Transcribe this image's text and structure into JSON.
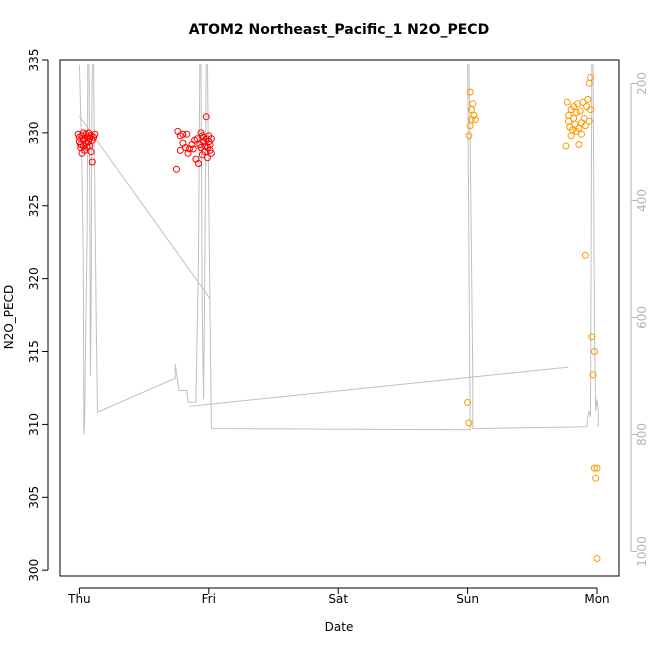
{
  "chart_data": {
    "type": "scatter",
    "title": "ATOM2 Northeast_Pacific_1 N2O_PECD",
    "xlabel": "Date",
    "ylabel": "N2O_PECD",
    "x_ticks": [
      "Thu",
      "Fri",
      "Sat",
      "Sun",
      "Mon"
    ],
    "x_unit": "days since first tick (Thu=0)",
    "xlim": [
      -0.15,
      4.17
    ],
    "ylim": [
      299.6,
      335.0
    ],
    "y_ticks": [
      300,
      305,
      310,
      315,
      320,
      325,
      330,
      335
    ],
    "y2_ticks": [
      200,
      400,
      600,
      800,
      1000
    ],
    "y2lim": [
      1042,
      160
    ],
    "grid": false,
    "colors": {
      "series1": "#ff0000",
      "series2": "#ff9900",
      "profile": "#c0c0c0",
      "axis": "#000000",
      "axis2": "#b3b3b3"
    },
    "series": [
      {
        "color": "#ff0000",
        "points": [
          [
            -0.01,
            329.9
          ],
          [
            0.0,
            329.7
          ],
          [
            0.0,
            329.4
          ],
          [
            0.01,
            329.2
          ],
          [
            0.01,
            329.0
          ],
          [
            0.02,
            328.6
          ],
          [
            0.02,
            329.8
          ],
          [
            0.03,
            330.0
          ],
          [
            0.03,
            329.5
          ],
          [
            0.03,
            329.1
          ],
          [
            0.04,
            328.8
          ],
          [
            0.04,
            329.6
          ],
          [
            0.05,
            329.9
          ],
          [
            0.05,
            329.3
          ],
          [
            0.06,
            329.7
          ],
          [
            0.06,
            329.0
          ],
          [
            0.07,
            330.0
          ],
          [
            0.07,
            329.4
          ],
          [
            0.08,
            329.6
          ],
          [
            0.08,
            329.1
          ],
          [
            0.09,
            329.8
          ],
          [
            0.09,
            328.7
          ],
          [
            0.1,
            329.5
          ],
          [
            0.1,
            328.0
          ],
          [
            0.11,
            329.7
          ],
          [
            0.12,
            329.9
          ],
          [
            0.75,
            327.5
          ],
          [
            0.76,
            330.1
          ],
          [
            0.78,
            329.8
          ],
          [
            0.78,
            328.8
          ],
          [
            0.8,
            329.9
          ],
          [
            0.8,
            329.3
          ],
          [
            0.82,
            329.0
          ],
          [
            0.83,
            329.9
          ],
          [
            0.84,
            328.6
          ],
          [
            0.85,
            328.9
          ],
          [
            0.87,
            329.2
          ],
          [
            0.88,
            328.9
          ],
          [
            0.89,
            329.5
          ],
          [
            0.9,
            328.2
          ],
          [
            0.91,
            329.6
          ],
          [
            0.92,
            327.9
          ],
          [
            0.93,
            329.2
          ],
          [
            0.94,
            330.0
          ],
          [
            0.94,
            329.0
          ],
          [
            0.95,
            329.8
          ],
          [
            0.95,
            328.5
          ],
          [
            0.96,
            329.4
          ],
          [
            0.96,
            329.7
          ],
          [
            0.97,
            329.1
          ],
          [
            0.97,
            328.7
          ],
          [
            0.98,
            331.1
          ],
          [
            0.98,
            329.6
          ],
          [
            0.99,
            329.0
          ],
          [
            0.99,
            328.3
          ],
          [
            1.0,
            329.8
          ],
          [
            1.0,
            329.4
          ],
          [
            1.01,
            329.2
          ],
          [
            1.01,
            328.8
          ],
          [
            1.02,
            329.6
          ],
          [
            1.02,
            328.6
          ]
        ]
      },
      {
        "color": "#ff9900",
        "points": [
          [
            3.0,
            311.5
          ],
          [
            3.01,
            310.1
          ],
          [
            3.01,
            329.8
          ],
          [
            3.02,
            332.8
          ],
          [
            3.02,
            330.5
          ],
          [
            3.03,
            331.6
          ],
          [
            3.03,
            330.9
          ],
          [
            3.04,
            332.0
          ],
          [
            3.05,
            331.2
          ],
          [
            3.06,
            330.9
          ],
          [
            3.76,
            329.1
          ],
          [
            3.77,
            332.1
          ],
          [
            3.78,
            330.8
          ],
          [
            3.78,
            331.2
          ],
          [
            3.79,
            330.4
          ],
          [
            3.8,
            331.6
          ],
          [
            3.8,
            329.8
          ],
          [
            3.81,
            330.2
          ],
          [
            3.82,
            331.0
          ],
          [
            3.82,
            331.8
          ],
          [
            3.83,
            330.6
          ],
          [
            3.84,
            330.1
          ],
          [
            3.84,
            331.4
          ],
          [
            3.85,
            332.0
          ],
          [
            3.86,
            330.3
          ],
          [
            3.86,
            329.2
          ],
          [
            3.87,
            331.5
          ],
          [
            3.88,
            330.7
          ],
          [
            3.88,
            329.9
          ],
          [
            3.89,
            332.1
          ],
          [
            3.9,
            331.0
          ],
          [
            3.91,
            330.5
          ],
          [
            3.91,
            321.6
          ],
          [
            3.92,
            331.8
          ],
          [
            3.93,
            332.3
          ],
          [
            3.94,
            333.4
          ],
          [
            3.94,
            330.8
          ],
          [
            3.95,
            331.6
          ],
          [
            3.95,
            333.8
          ],
          [
            3.96,
            316.0
          ],
          [
            3.97,
            313.4
          ],
          [
            3.98,
            315.0
          ],
          [
            3.98,
            307.0
          ],
          [
            3.99,
            306.3
          ],
          [
            4.0,
            307.0
          ],
          [
            4.0,
            300.8
          ]
        ]
      }
    ],
    "profile_pressure": {
      "color": "#c0c0c0",
      "points": [
        [
          0.0,
          168
        ],
        [
          0.01,
          250
        ],
        [
          0.02,
          350
        ],
        [
          0.03,
          500
        ],
        [
          0.035,
          800
        ],
        [
          0.04,
          780
        ],
        [
          0.05,
          600
        ],
        [
          0.06,
          450
        ],
        [
          0.065,
          168
        ],
        [
          0.075,
          168
        ],
        [
          0.08,
          400
        ],
        [
          0.085,
          700
        ],
        [
          0.09,
          600
        ],
        [
          0.095,
          300
        ],
        [
          0.1,
          168
        ],
        [
          0.11,
          168
        ],
        [
          0.12,
          400
        ],
        [
          0.13,
          600
        ],
        [
          0.14,
          762
        ],
        [
          0.14,
          762
        ],
        [
          0.74,
          704
        ],
        [
          0.74,
          680
        ],
        [
          0.77,
          725
        ],
        [
          0.83,
          725
        ],
        [
          0.84,
          745
        ],
        [
          0.9,
          745
        ],
        [
          0.92,
          500
        ],
        [
          0.93,
          168
        ],
        [
          0.94,
          168
        ],
        [
          0.95,
          600
        ],
        [
          0.96,
          740
        ],
        [
          0.97,
          500
        ],
        [
          0.98,
          168
        ],
        [
          0.99,
          168
        ],
        [
          1.0,
          400
        ],
        [
          1.01,
          600
        ],
        [
          1.02,
          790
        ],
        [
          1.02,
          790
        ],
        [
          3.02,
          792
        ],
        [
          3.0,
          168
        ],
        [
          3.01,
          168
        ],
        [
          3.02,
          300
        ],
        [
          3.03,
          500
        ],
        [
          3.04,
          700
        ],
        [
          3.04,
          790
        ],
        [
          3.04,
          790
        ],
        [
          3.92,
          787
        ],
        [
          3.93,
          768
        ],
        [
          3.94,
          760
        ],
        [
          3.95,
          770
        ],
        [
          3.96,
          168
        ],
        [
          3.97,
          168
        ],
        [
          3.98,
          600
        ],
        [
          3.99,
          760
        ],
        [
          4.0,
          740
        ],
        [
          4.01,
          760
        ],
        [
          4.01,
          787
        ]
      ]
    },
    "profile_diagonal": {
      "color": "#c0c0c0",
      "points": [
        [
          0.0,
          256
        ],
        [
          1.01,
          568
        ]
      ]
    },
    "profile_connector": {
      "color": "#c0c0c0",
      "points": [
        [
          0.85,
          752
        ],
        [
          3.78,
          685
        ]
      ]
    }
  }
}
